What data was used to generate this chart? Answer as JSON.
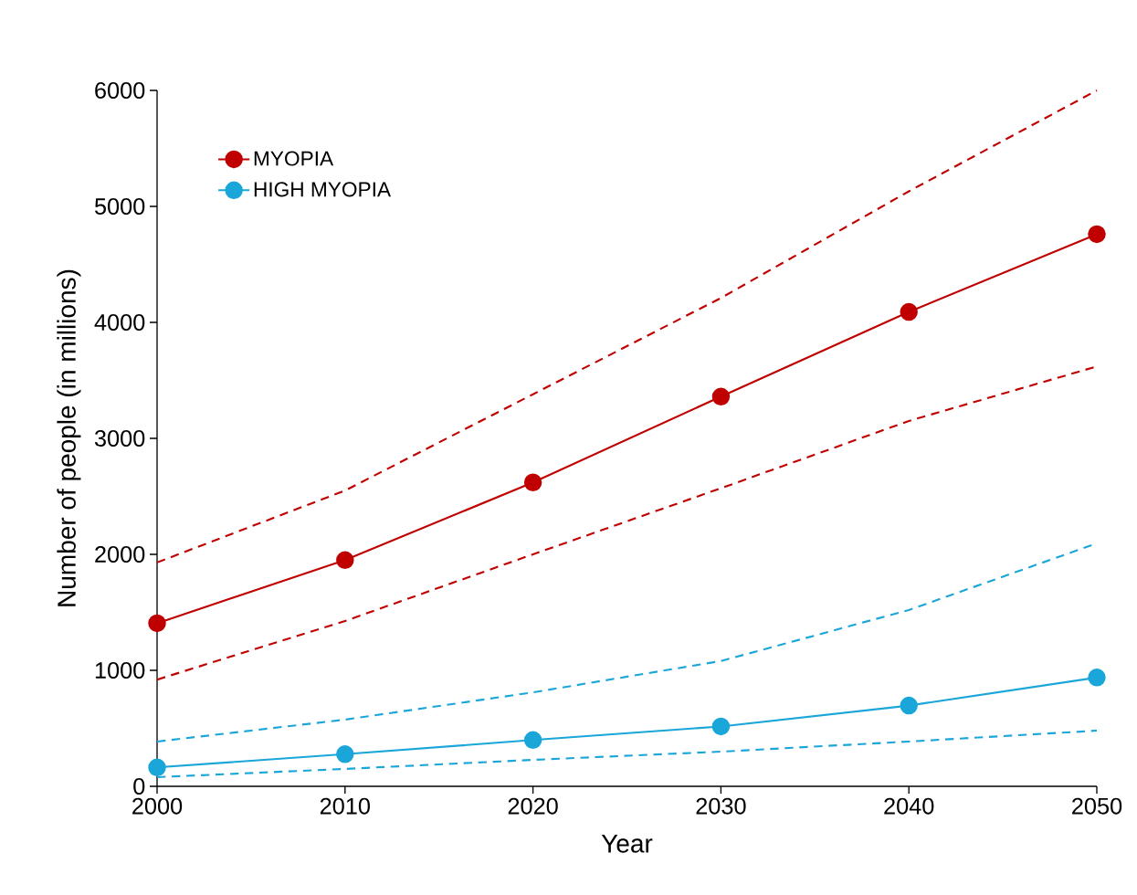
{
  "chart_data": {
    "type": "line",
    "xlabel": "Year",
    "ylabel": "Number of people (in millions)",
    "x": [
      2000,
      2010,
      2020,
      2030,
      2040,
      2050
    ],
    "series": [
      {
        "name": "MYOPIA",
        "color": "#c00000",
        "marker": "circle",
        "line_style": "solid",
        "values": [
          1406,
          1950,
          2620,
          3360,
          4090,
          4760
        ]
      },
      {
        "name": "HIGH MYOPIA",
        "color": "#1aa6d8",
        "marker": "circle",
        "line_style": "solid",
        "values": [
          163,
          277,
          399,
          516,
          696,
          938
        ]
      },
      {
        "color": "#c00000",
        "marker": "none",
        "line_style": "dashed",
        "values": [
          1930,
          2550,
          3380,
          4210,
          5130,
          6000
        ]
      },
      {
        "color": "#c00000",
        "marker": "none",
        "line_style": "dashed",
        "values": [
          920,
          1425,
          2000,
          2570,
          3150,
          3620
        ]
      },
      {
        "color": "#1aa6d8",
        "marker": "none",
        "line_style": "dashed",
        "values": [
          386,
          575,
          810,
          1080,
          1520,
          2095
        ]
      },
      {
        "color": "#1aa6d8",
        "marker": "none",
        "line_style": "dashed",
        "values": [
          79,
          150,
          228,
          299,
          386,
          480
        ]
      }
    ],
    "xlim": [
      2000,
      2050
    ],
    "xticks": [
      2000,
      2010,
      2020,
      2030,
      2040,
      2050
    ],
    "ylim": [
      0,
      6000
    ],
    "yticks": [
      0,
      1000,
      2000,
      3000,
      4000,
      5000,
      6000
    ],
    "grid": false,
    "legend": "top left"
  }
}
